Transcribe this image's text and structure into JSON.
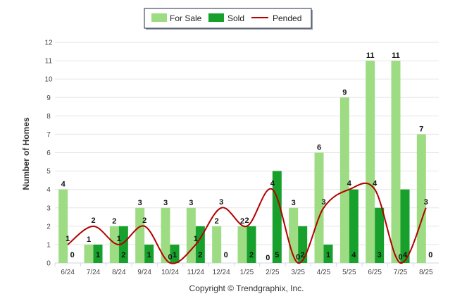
{
  "colors": {
    "for_sale": "#9ddc82",
    "sold": "#18a02c",
    "pended": "#b30000",
    "grid": "#e6e6e6",
    "axis": "#cfd8e6"
  },
  "credit": "Copyright © Trendgraphix, Inc.",
  "chart_data": {
    "type": "bar",
    "ylabel": "Number of Homes",
    "ylim": [
      0,
      12
    ],
    "yticks": [
      0,
      1,
      2,
      3,
      4,
      5,
      6,
      7,
      8,
      9,
      10,
      11,
      12
    ],
    "grid": true,
    "legend_position": "top-center",
    "categories": [
      "6/24",
      "7/24",
      "8/24",
      "9/24",
      "10/24",
      "11/24",
      "12/24",
      "1/25",
      "2/25",
      "3/25",
      "4/25",
      "5/25",
      "6/25",
      "7/25",
      "8/25"
    ],
    "series": [
      {
        "name": "For Sale",
        "kind": "bar",
        "values": [
          4,
          1,
          2,
          3,
          3,
          3,
          2,
          2,
          0,
          3,
          6,
          9,
          11,
          11,
          7
        ]
      },
      {
        "name": "Sold",
        "kind": "bar",
        "values": [
          0,
          1,
          2,
          1,
          1,
          2,
          0,
          2,
          5,
          2,
          1,
          4,
          3,
          4,
          0
        ]
      },
      {
        "name": "Pended",
        "kind": "line",
        "values": [
          1,
          2,
          1,
          2,
          0,
          1,
          3,
          2,
          4,
          0,
          3,
          4,
          4,
          0,
          3
        ]
      }
    ]
  }
}
